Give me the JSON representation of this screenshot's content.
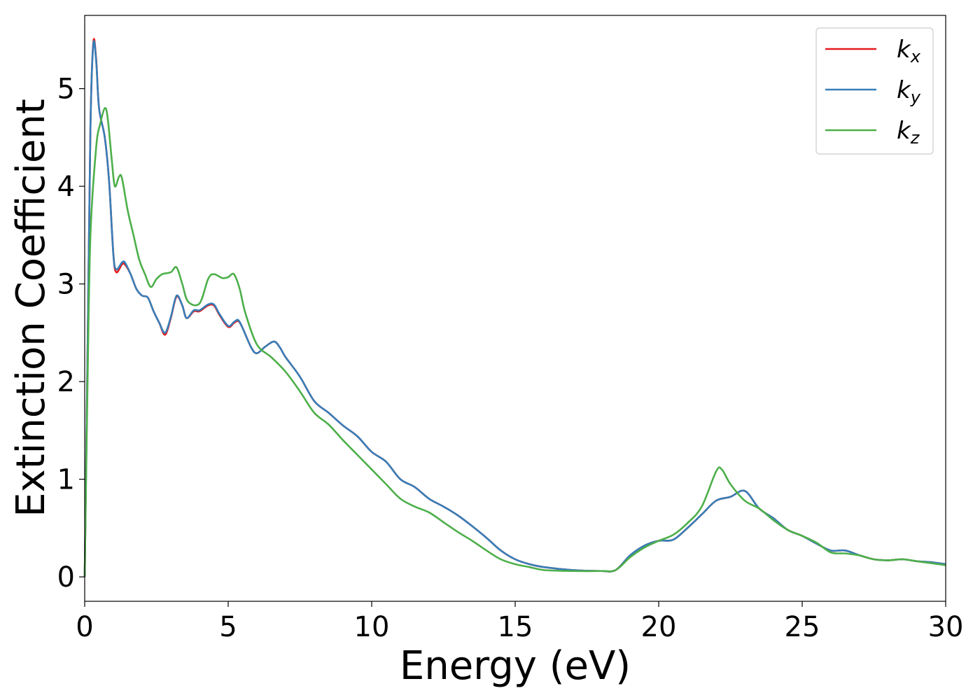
{
  "chart_data": {
    "type": "line",
    "xlabel": "Energy (eV)",
    "ylabel": "Extinction Coefficient",
    "xlim": [
      0,
      30
    ],
    "ylim": [
      -0.25,
      5.75
    ],
    "xticks": [
      0,
      5,
      10,
      15,
      20,
      25,
      30
    ],
    "yticks": [
      0,
      1,
      2,
      3,
      4,
      5
    ],
    "legend_position": "top-right",
    "grid": false,
    "series": [
      {
        "name": "k_x",
        "label_base": "k",
        "label_sub": "x",
        "color": "#e41a1c",
        "points": [
          [
            0,
            0
          ],
          [
            0.1,
            2.3
          ],
          [
            0.2,
            4.6
          ],
          [
            0.3,
            5.47
          ],
          [
            0.4,
            5.3
          ],
          [
            0.5,
            4.8
          ],
          [
            0.7,
            4.5
          ],
          [
            0.85,
            4.05
          ],
          [
            1.0,
            3.3
          ],
          [
            1.1,
            3.12
          ],
          [
            1.3,
            3.2
          ],
          [
            1.4,
            3.2
          ],
          [
            1.6,
            3.1
          ],
          [
            1.8,
            2.95
          ],
          [
            2.0,
            2.88
          ],
          [
            2.2,
            2.86
          ],
          [
            2.4,
            2.72
          ],
          [
            2.6,
            2.6
          ],
          [
            2.8,
            2.48
          ],
          [
            3.0,
            2.65
          ],
          [
            3.2,
            2.87
          ],
          [
            3.4,
            2.78
          ],
          [
            3.55,
            2.65
          ],
          [
            3.8,
            2.72
          ],
          [
            4.0,
            2.72
          ],
          [
            4.3,
            2.78
          ],
          [
            4.5,
            2.78
          ],
          [
            4.7,
            2.68
          ],
          [
            5.0,
            2.56
          ],
          [
            5.2,
            2.6
          ],
          [
            5.35,
            2.62
          ],
          [
            5.5,
            2.55
          ],
          [
            5.8,
            2.35
          ],
          [
            6.0,
            2.29
          ],
          [
            6.3,
            2.36
          ],
          [
            6.6,
            2.41
          ],
          [
            6.8,
            2.35
          ],
          [
            7.0,
            2.25
          ],
          [
            7.5,
            2.05
          ],
          [
            8.0,
            1.8
          ],
          [
            8.5,
            1.68
          ],
          [
            9.0,
            1.55
          ],
          [
            9.5,
            1.44
          ],
          [
            10.0,
            1.28
          ],
          [
            10.5,
            1.18
          ],
          [
            11.0,
            1.0
          ],
          [
            11.5,
            0.92
          ],
          [
            12.0,
            0.8
          ],
          [
            12.5,
            0.72
          ],
          [
            13.0,
            0.63
          ],
          [
            13.5,
            0.52
          ],
          [
            14.0,
            0.4
          ],
          [
            14.5,
            0.27
          ],
          [
            15.0,
            0.18
          ],
          [
            15.5,
            0.13
          ],
          [
            16.0,
            0.1
          ],
          [
            17.0,
            0.07
          ],
          [
            18.0,
            0.06
          ],
          [
            18.5,
            0.07
          ],
          [
            19.0,
            0.22
          ],
          [
            19.5,
            0.32
          ],
          [
            20.0,
            0.37
          ],
          [
            20.5,
            0.38
          ],
          [
            21.0,
            0.5
          ],
          [
            21.5,
            0.64
          ],
          [
            22.0,
            0.78
          ],
          [
            22.5,
            0.82
          ],
          [
            23.0,
            0.88
          ],
          [
            23.5,
            0.7
          ],
          [
            24.0,
            0.6
          ],
          [
            24.5,
            0.48
          ],
          [
            25.0,
            0.42
          ],
          [
            25.5,
            0.34
          ],
          [
            26.0,
            0.27
          ],
          [
            26.5,
            0.27
          ],
          [
            27.0,
            0.22
          ],
          [
            27.5,
            0.18
          ],
          [
            28.0,
            0.17
          ],
          [
            28.5,
            0.18
          ],
          [
            29.0,
            0.16
          ],
          [
            29.5,
            0.15
          ],
          [
            30.0,
            0.13
          ]
        ]
      },
      {
        "name": "k_y",
        "label_base": "k",
        "label_sub": "y",
        "color": "#377eb8",
        "points": [
          [
            0,
            0
          ],
          [
            0.1,
            2.3
          ],
          [
            0.2,
            4.6
          ],
          [
            0.3,
            5.45
          ],
          [
            0.4,
            5.28
          ],
          [
            0.5,
            4.8
          ],
          [
            0.7,
            4.5
          ],
          [
            0.85,
            4.05
          ],
          [
            1.0,
            3.3
          ],
          [
            1.1,
            3.15
          ],
          [
            1.3,
            3.22
          ],
          [
            1.4,
            3.22
          ],
          [
            1.6,
            3.1
          ],
          [
            1.8,
            2.95
          ],
          [
            2.0,
            2.88
          ],
          [
            2.2,
            2.86
          ],
          [
            2.4,
            2.72
          ],
          [
            2.6,
            2.6
          ],
          [
            2.8,
            2.5
          ],
          [
            3.0,
            2.66
          ],
          [
            3.2,
            2.88
          ],
          [
            3.4,
            2.78
          ],
          [
            3.55,
            2.65
          ],
          [
            3.8,
            2.73
          ],
          [
            4.0,
            2.73
          ],
          [
            4.3,
            2.79
          ],
          [
            4.5,
            2.79
          ],
          [
            4.7,
            2.69
          ],
          [
            5.0,
            2.57
          ],
          [
            5.2,
            2.61
          ],
          [
            5.35,
            2.63
          ],
          [
            5.5,
            2.55
          ],
          [
            5.8,
            2.35
          ],
          [
            6.0,
            2.29
          ],
          [
            6.3,
            2.36
          ],
          [
            6.6,
            2.41
          ],
          [
            6.8,
            2.35
          ],
          [
            7.0,
            2.25
          ],
          [
            7.5,
            2.05
          ],
          [
            8.0,
            1.8
          ],
          [
            8.5,
            1.68
          ],
          [
            9.0,
            1.55
          ],
          [
            9.5,
            1.44
          ],
          [
            10.0,
            1.28
          ],
          [
            10.5,
            1.18
          ],
          [
            11.0,
            1.0
          ],
          [
            11.5,
            0.92
          ],
          [
            12.0,
            0.8
          ],
          [
            12.5,
            0.72
          ],
          [
            13.0,
            0.63
          ],
          [
            13.5,
            0.52
          ],
          [
            14.0,
            0.4
          ],
          [
            14.5,
            0.27
          ],
          [
            15.0,
            0.18
          ],
          [
            15.5,
            0.13
          ],
          [
            16.0,
            0.1
          ],
          [
            17.0,
            0.07
          ],
          [
            18.0,
            0.06
          ],
          [
            18.5,
            0.07
          ],
          [
            19.0,
            0.22
          ],
          [
            19.5,
            0.32
          ],
          [
            20.0,
            0.37
          ],
          [
            20.5,
            0.38
          ],
          [
            21.0,
            0.5
          ],
          [
            21.5,
            0.64
          ],
          [
            22.0,
            0.78
          ],
          [
            22.5,
            0.82
          ],
          [
            23.0,
            0.88
          ],
          [
            23.5,
            0.7
          ],
          [
            24.0,
            0.6
          ],
          [
            24.5,
            0.48
          ],
          [
            25.0,
            0.42
          ],
          [
            25.5,
            0.34
          ],
          [
            26.0,
            0.27
          ],
          [
            26.5,
            0.27
          ],
          [
            27.0,
            0.22
          ],
          [
            27.5,
            0.18
          ],
          [
            28.0,
            0.17
          ],
          [
            28.5,
            0.18
          ],
          [
            29.0,
            0.16
          ],
          [
            29.5,
            0.15
          ],
          [
            30.0,
            0.13
          ]
        ]
      },
      {
        "name": "k_z",
        "label_base": "k",
        "label_sub": "z",
        "color": "#4daf4a",
        "points": [
          [
            0,
            0
          ],
          [
            0.1,
            2.0
          ],
          [
            0.2,
            3.5
          ],
          [
            0.4,
            4.4
          ],
          [
            0.55,
            4.65
          ],
          [
            0.7,
            4.8
          ],
          [
            0.8,
            4.7
          ],
          [
            0.95,
            4.25
          ],
          [
            1.05,
            4.0
          ],
          [
            1.2,
            4.1
          ],
          [
            1.3,
            4.08
          ],
          [
            1.5,
            3.75
          ],
          [
            1.7,
            3.5
          ],
          [
            1.9,
            3.25
          ],
          [
            2.1,
            3.1
          ],
          [
            2.3,
            2.97
          ],
          [
            2.5,
            3.05
          ],
          [
            2.7,
            3.1
          ],
          [
            3.0,
            3.12
          ],
          [
            3.2,
            3.17
          ],
          [
            3.4,
            3.0
          ],
          [
            3.6,
            2.82
          ],
          [
            4.0,
            2.8
          ],
          [
            4.3,
            3.05
          ],
          [
            4.5,
            3.1
          ],
          [
            4.8,
            3.06
          ],
          [
            5.0,
            3.07
          ],
          [
            5.2,
            3.1
          ],
          [
            5.4,
            2.95
          ],
          [
            5.6,
            2.7
          ],
          [
            6.0,
            2.38
          ],
          [
            6.5,
            2.25
          ],
          [
            7.0,
            2.1
          ],
          [
            7.5,
            1.9
          ],
          [
            8.0,
            1.68
          ],
          [
            8.5,
            1.56
          ],
          [
            9.0,
            1.4
          ],
          [
            9.5,
            1.25
          ],
          [
            10.0,
            1.1
          ],
          [
            10.5,
            0.95
          ],
          [
            11.0,
            0.8
          ],
          [
            11.5,
            0.72
          ],
          [
            12.0,
            0.66
          ],
          [
            12.5,
            0.56
          ],
          [
            13.0,
            0.46
          ],
          [
            13.5,
            0.37
          ],
          [
            14.0,
            0.27
          ],
          [
            14.5,
            0.18
          ],
          [
            15.0,
            0.13
          ],
          [
            15.5,
            0.1
          ],
          [
            16.0,
            0.07
          ],
          [
            17.0,
            0.06
          ],
          [
            18.0,
            0.06
          ],
          [
            18.5,
            0.07
          ],
          [
            19.0,
            0.2
          ],
          [
            19.5,
            0.3
          ],
          [
            20.0,
            0.37
          ],
          [
            20.5,
            0.43
          ],
          [
            21.0,
            0.55
          ],
          [
            21.5,
            0.72
          ],
          [
            22.0,
            1.08
          ],
          [
            22.2,
            1.1
          ],
          [
            22.5,
            0.95
          ],
          [
            23.0,
            0.78
          ],
          [
            23.5,
            0.7
          ],
          [
            24.0,
            0.58
          ],
          [
            24.5,
            0.48
          ],
          [
            25.0,
            0.42
          ],
          [
            25.5,
            0.35
          ],
          [
            26.0,
            0.25
          ],
          [
            26.5,
            0.24
          ],
          [
            27.0,
            0.22
          ],
          [
            27.5,
            0.18
          ],
          [
            28.0,
            0.17
          ],
          [
            28.5,
            0.18
          ],
          [
            29.0,
            0.16
          ],
          [
            29.5,
            0.14
          ],
          [
            30.0,
            0.12
          ]
        ]
      }
    ]
  }
}
